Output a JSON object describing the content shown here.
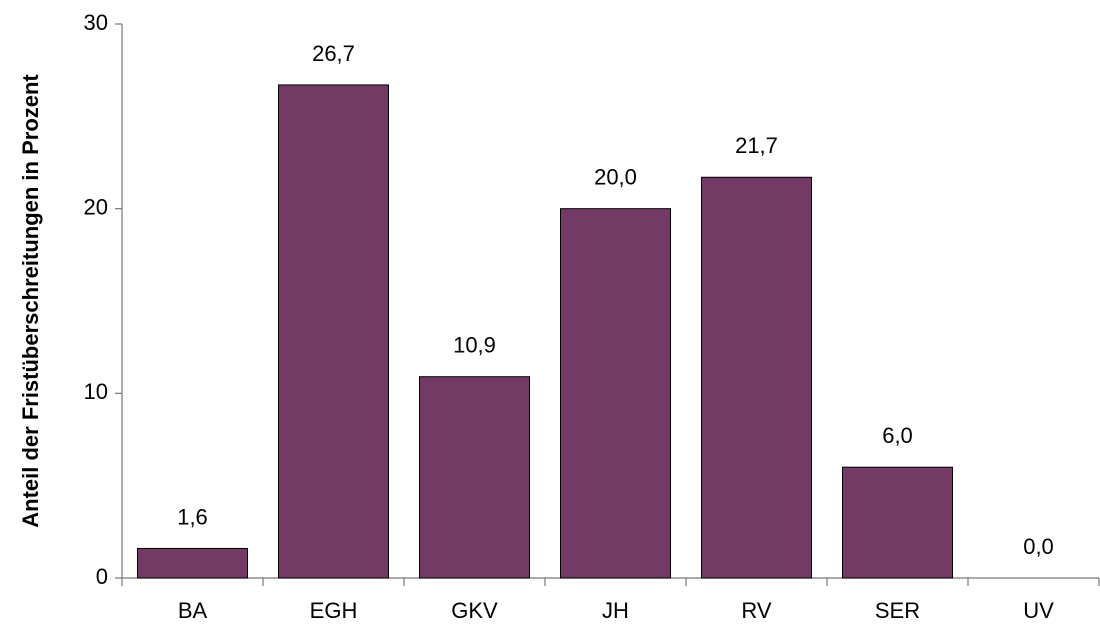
{
  "chart_data": {
    "type": "bar",
    "y_label": "Anteil der Fristüberschreitungen in Prozent",
    "categories": [
      "BA",
      "EGH",
      "GKV",
      "JH",
      "RV",
      "SER",
      "UV"
    ],
    "values": [
      1.6,
      26.7,
      10.9,
      20.0,
      21.7,
      6.0,
      0.0
    ],
    "value_labels": [
      "1,6",
      "26,7",
      "10,9",
      "20,0",
      "21,7",
      "6,0",
      "0,0"
    ],
    "color": "#733a66",
    "ylim": [
      0,
      30
    ],
    "yticks": [
      0,
      10,
      20,
      30
    ],
    "grid": false
  }
}
